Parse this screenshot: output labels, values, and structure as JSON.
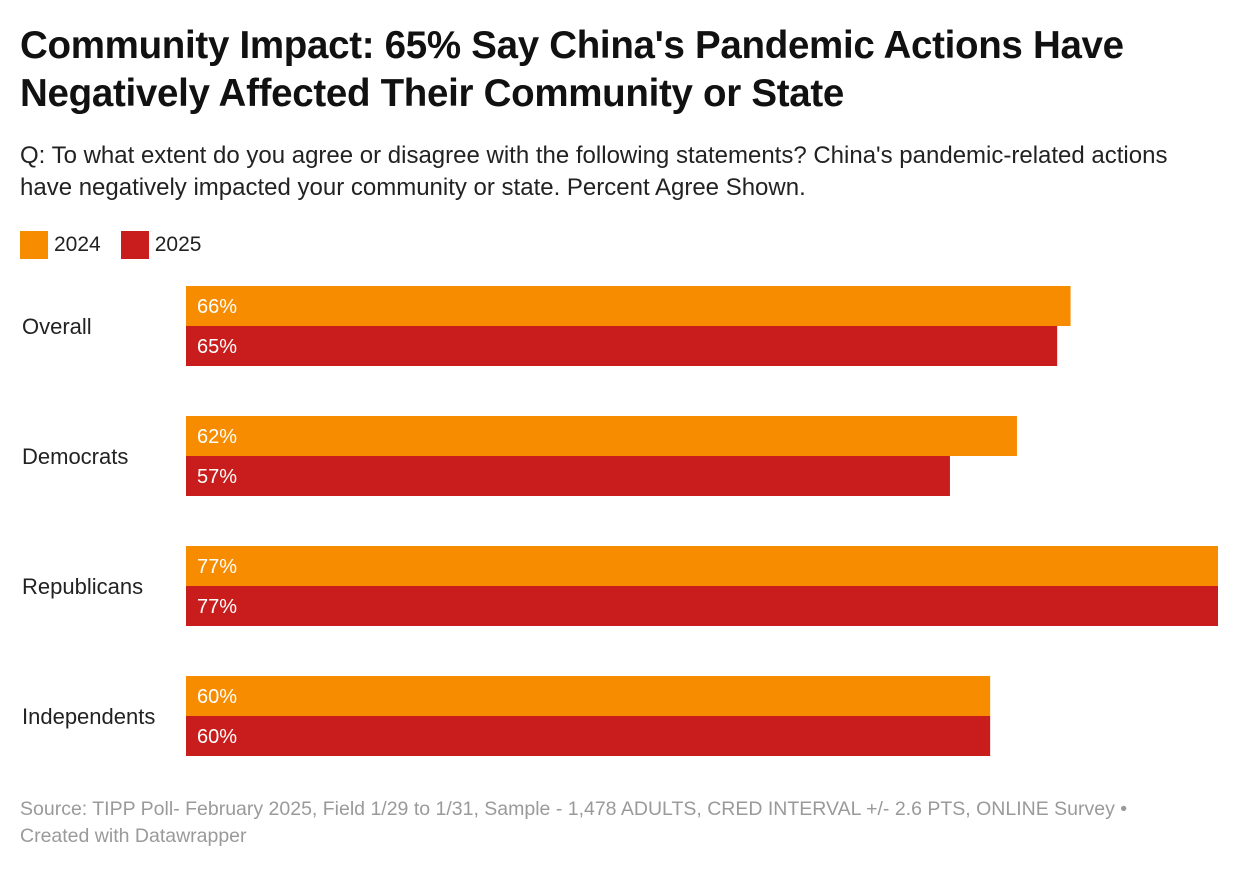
{
  "header": {
    "title": "Community Impact: 65% Say China's Pandemic Actions Have Negatively Affected Their Community or State",
    "subtitle": "Q: To what extent do you agree or disagree with the following statements? China's pandemic-related actions have negatively impacted your community or state. Percent Agree Shown."
  },
  "legend": [
    {
      "label": "2024",
      "color": "#f78c00"
    },
    {
      "label": "2025",
      "color": "#c91d1d"
    }
  ],
  "chart_data": {
    "type": "bar",
    "orientation": "horizontal",
    "title": "Community Impact: 65% Say China's Pandemic Actions Have Negatively Affected Their Community or State",
    "categories": [
      "Overall",
      "Democrats",
      "Republicans",
      "Independents"
    ],
    "series": [
      {
        "name": "2024",
        "color": "#f78c00",
        "values": [
          66,
          62,
          77,
          60
        ],
        "labels": [
          "66%",
          "62%",
          "77%",
          "60%"
        ]
      },
      {
        "name": "2025",
        "color": "#c91d1d",
        "values": [
          65,
          57,
          77,
          60
        ],
        "labels": [
          "65%",
          "57%",
          "77%",
          "60%"
        ]
      }
    ],
    "xlim": [
      0,
      77
    ],
    "xlabel": "",
    "ylabel": "",
    "legend": "top-left",
    "grid": false
  },
  "footer": {
    "source": "Source: TIPP Poll- February 2025, Field 1/29 to 1/31, Sample - 1,478 ADULTS, CRED INTERVAL +/- 2.6 PTS, ONLINE Survey • Created with Datawrapper"
  }
}
